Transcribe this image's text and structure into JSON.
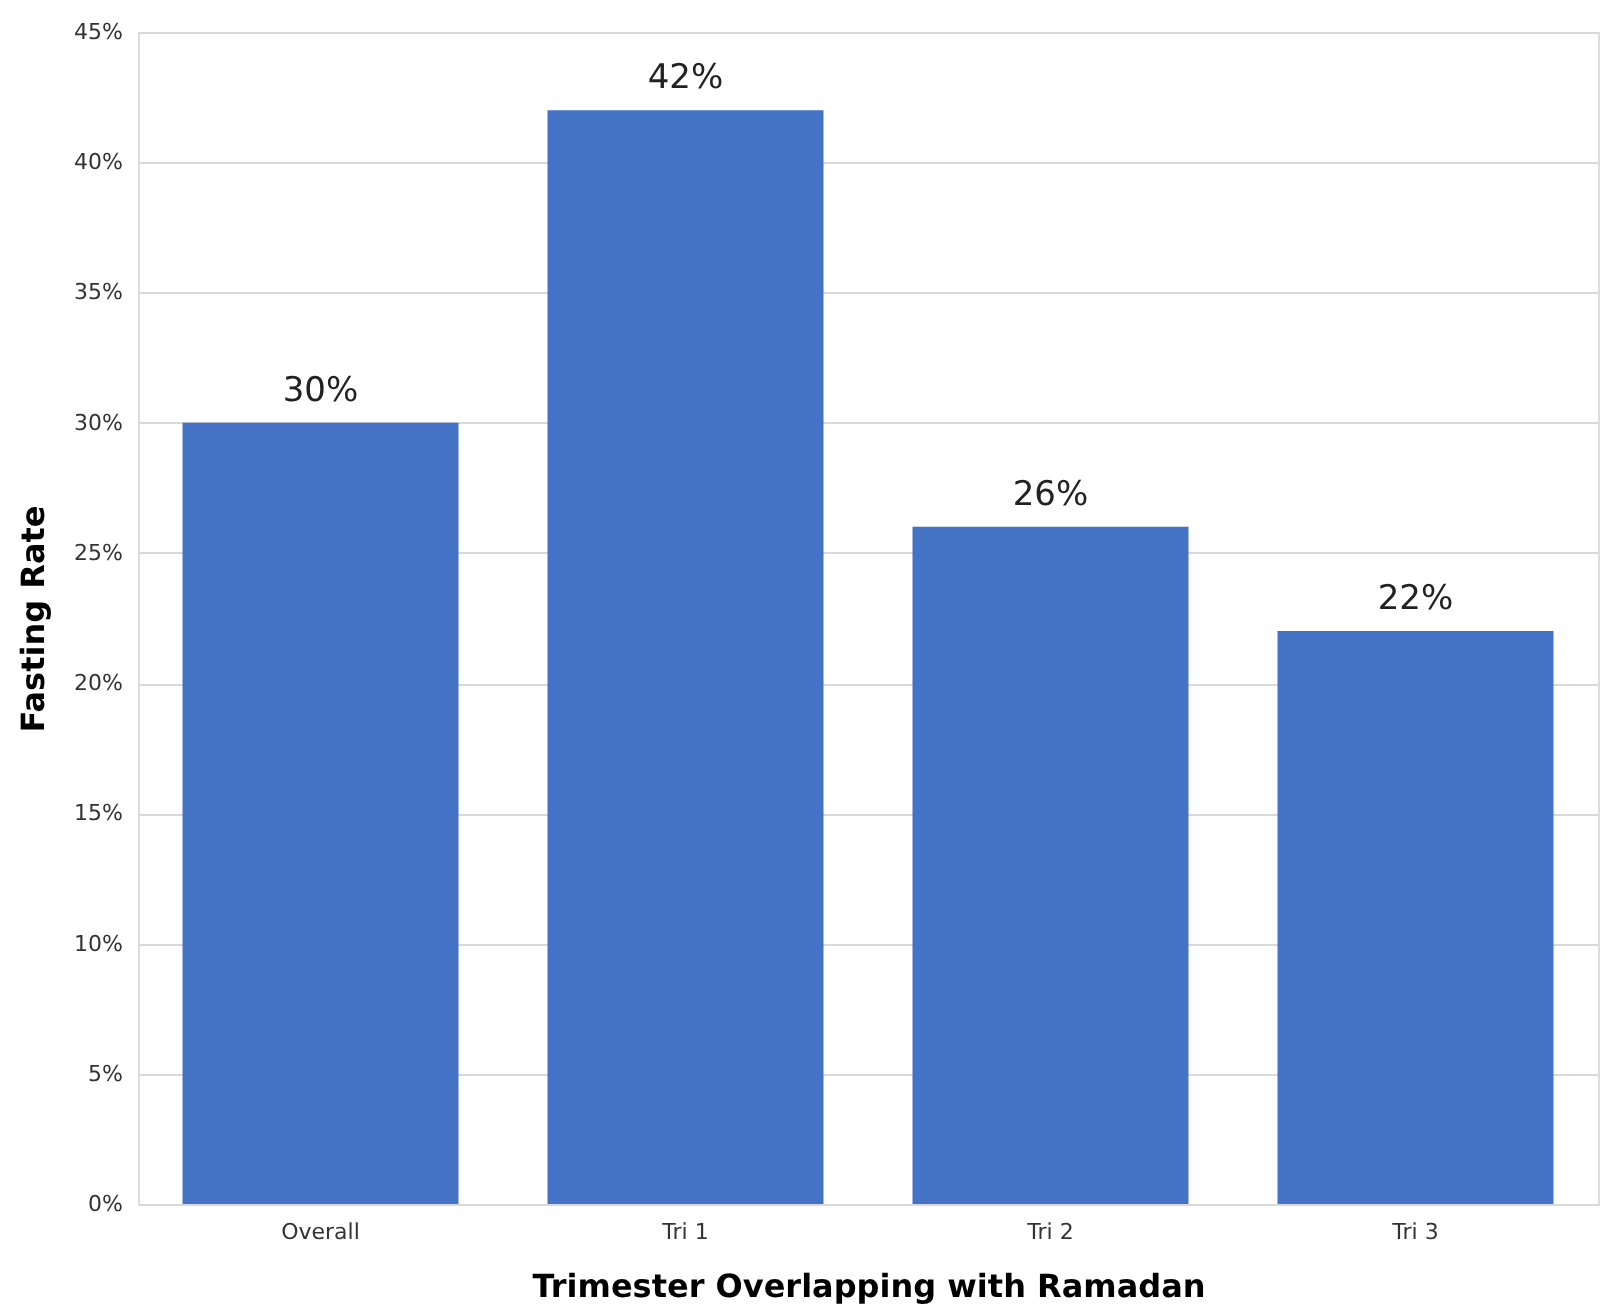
{
  "chart_data": {
    "type": "bar",
    "xlabel": "Trimester Overlapping with Ramadan",
    "ylabel": "Fasting Rate",
    "categories": [
      "Overall",
      "Tri 1",
      "Tri 2",
      "Tri 3"
    ],
    "values": [
      30,
      42,
      26,
      22
    ],
    "value_labels": [
      "30%",
      "42%",
      "26%",
      "22%"
    ],
    "color": "#4472c4",
    "ylim": [
      0,
      45
    ],
    "yticks": [
      {
        "value": 0,
        "label": "0%"
      },
      {
        "value": 5,
        "label": "5%"
      },
      {
        "value": 10,
        "label": "10%"
      },
      {
        "value": 15,
        "label": "15%"
      },
      {
        "value": 20,
        "label": "20%"
      },
      {
        "value": 25,
        "label": "25%"
      },
      {
        "value": 30,
        "label": "30%"
      },
      {
        "value": 35,
        "label": "35%"
      },
      {
        "value": 40,
        "label": "40%"
      },
      {
        "value": 45,
        "label": "45%"
      }
    ],
    "grid": "y"
  }
}
